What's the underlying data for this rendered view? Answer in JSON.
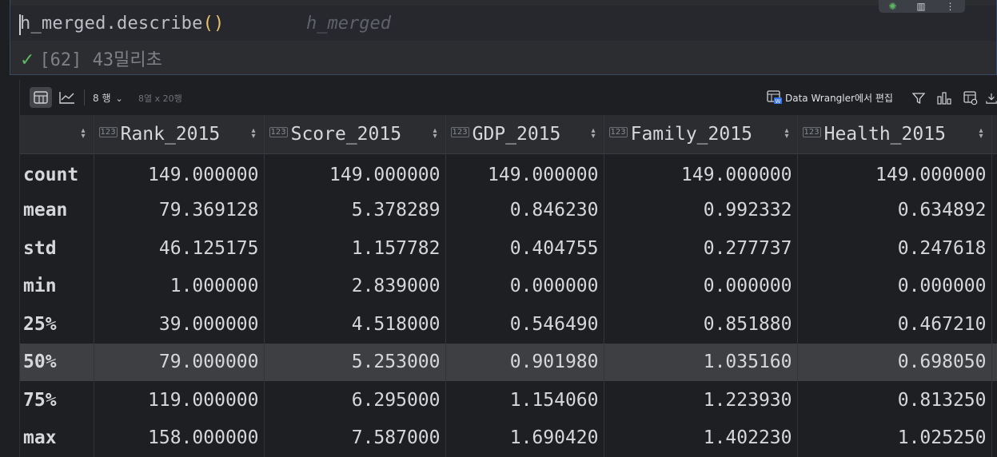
{
  "cell": {
    "code_prefix": "h_merged.describe",
    "code_parens": "()",
    "inline_hint": "h_merged",
    "exec_count": "[62]",
    "duration": "43밀리초",
    "check": "✓"
  },
  "toolbar": {
    "rows": "8 행",
    "dims": "8열 x 20행",
    "data_wrangler": "Data Wrangler에서 편집"
  },
  "table": {
    "columns": [
      "",
      "Rank_2015",
      "Score_2015",
      "GDP_2015",
      "Family_2015",
      "Health_2015"
    ],
    "type_badge": "123",
    "rows": [
      {
        "label": "count",
        "values": [
          "149.000000",
          "149.000000",
          "149.000000",
          "149.000000",
          "149.000000"
        ]
      },
      {
        "label": "mean",
        "values": [
          "79.369128",
          "5.378289",
          "0.846230",
          "0.992332",
          "0.634892"
        ]
      },
      {
        "label": "std",
        "values": [
          "46.125175",
          "1.157782",
          "0.404755",
          "0.277737",
          "0.247618"
        ]
      },
      {
        "label": "min",
        "values": [
          "1.000000",
          "2.839000",
          "0.000000",
          "0.000000",
          "0.000000"
        ]
      },
      {
        "label": "25%",
        "values": [
          "39.000000",
          "4.518000",
          "0.546490",
          "0.851880",
          "0.467210"
        ]
      },
      {
        "label": "50%",
        "values": [
          "79.000000",
          "5.253000",
          "0.901980",
          "1.035160",
          "0.698050"
        ]
      },
      {
        "label": "75%",
        "values": [
          "119.000000",
          "6.295000",
          "1.154060",
          "1.223930",
          "0.813250"
        ]
      },
      {
        "label": "max",
        "values": [
          "158.000000",
          "7.587000",
          "1.690420",
          "1.402230",
          "1.025250"
        ]
      }
    ]
  },
  "colors": {
    "background": "#1e1f22",
    "header": "#2b2d30",
    "highlight_row": "#3d3f43",
    "paren": "#e8c26a",
    "success": "#5fb865"
  }
}
